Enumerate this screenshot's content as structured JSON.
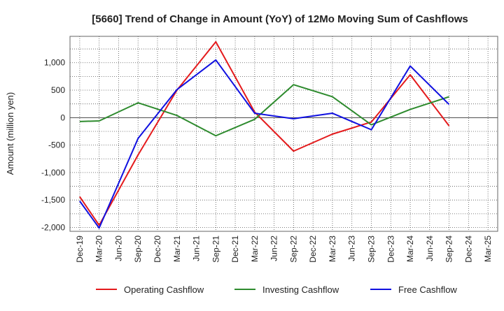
{
  "chart_data": {
    "type": "line",
    "title": "[5660]  Trend of Change in Amount (YoY) of 12Mo Moving Sum of Cashflows",
    "xlabel": "",
    "ylabel": "Amount (million yen)",
    "categories": [
      "Dec-19",
      "Mar-20",
      "Jun-20",
      "Sep-20",
      "Dec-20",
      "Mar-21",
      "Jun-21",
      "Sep-21",
      "Dec-21",
      "Mar-22",
      "Jun-22",
      "Sep-22",
      "Dec-22",
      "Mar-23",
      "Jun-23",
      "Sep-23",
      "Dec-23",
      "Mar-24",
      "Jun-24",
      "Sep-24",
      "Dec-24",
      "Mar-25"
    ],
    "ylim": [
      -2070,
      1480
    ],
    "yticks": [
      -2000,
      -1500,
      -1000,
      -500,
      0,
      500,
      1000
    ],
    "ytick_labels": [
      "-2,000",
      "-1,500",
      "-1,000",
      "-500",
      "0",
      "500",
      "1,000"
    ],
    "grid": true,
    "legend_position": "bottom",
    "series": [
      {
        "name": "Operating Cashflow",
        "color": "#e41a1c",
        "values": [
          -1440,
          -1960,
          null,
          -680,
          null,
          500,
          null,
          1380,
          null,
          100,
          null,
          -610,
          null,
          -300,
          null,
          -80,
          null,
          780,
          null,
          -150,
          null,
          null
        ]
      },
      {
        "name": "Investing Cashflow",
        "color": "#2e8b2e",
        "values": [
          -70,
          -60,
          null,
          270,
          null,
          40,
          null,
          -330,
          null,
          -30,
          null,
          600,
          null,
          380,
          null,
          -130,
          null,
          150,
          null,
          380,
          null,
          null
        ]
      },
      {
        "name": "Free Cashflow",
        "color": "#1010e0",
        "values": [
          -1520,
          -2010,
          null,
          -380,
          null,
          510,
          null,
          1050,
          null,
          80,
          null,
          -20,
          null,
          80,
          null,
          -220,
          null,
          940,
          null,
          240,
          null,
          null
        ]
      }
    ]
  }
}
